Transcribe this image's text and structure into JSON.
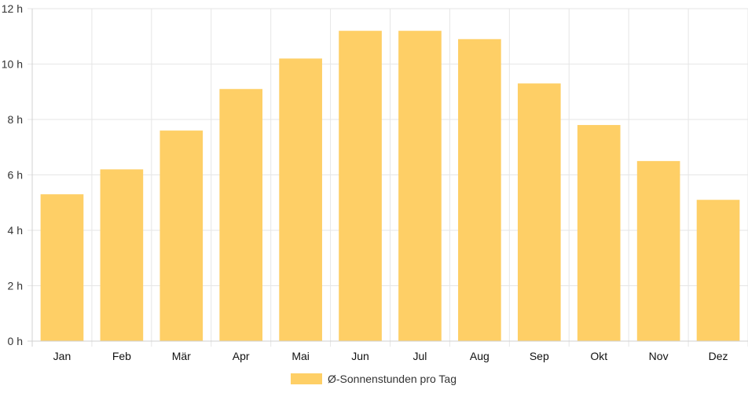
{
  "chart_data": {
    "type": "bar",
    "categories": [
      "Jan",
      "Feb",
      "Mär",
      "Apr",
      "Mai",
      "Jun",
      "Jul",
      "Aug",
      "Sep",
      "Okt",
      "Nov",
      "Dez"
    ],
    "series": [
      {
        "name": "Ø-Sonnenstunden pro Tag",
        "values": [
          5.3,
          6.2,
          7.6,
          9.1,
          10.2,
          11.2,
          11.2,
          10.9,
          9.3,
          7.8,
          6.5,
          5.1
        ]
      }
    ],
    "yticks": [
      "0 h",
      "2 h",
      "4 h",
      "6 h",
      "8 h",
      "10 h",
      "12 h"
    ],
    "ylim": [
      0,
      12
    ],
    "grid": true,
    "legend_position": "bottom",
    "bar_color": "#FECF66",
    "grid_color": "#E6E6E6",
    "axis_color": "#D0D0D0"
  }
}
